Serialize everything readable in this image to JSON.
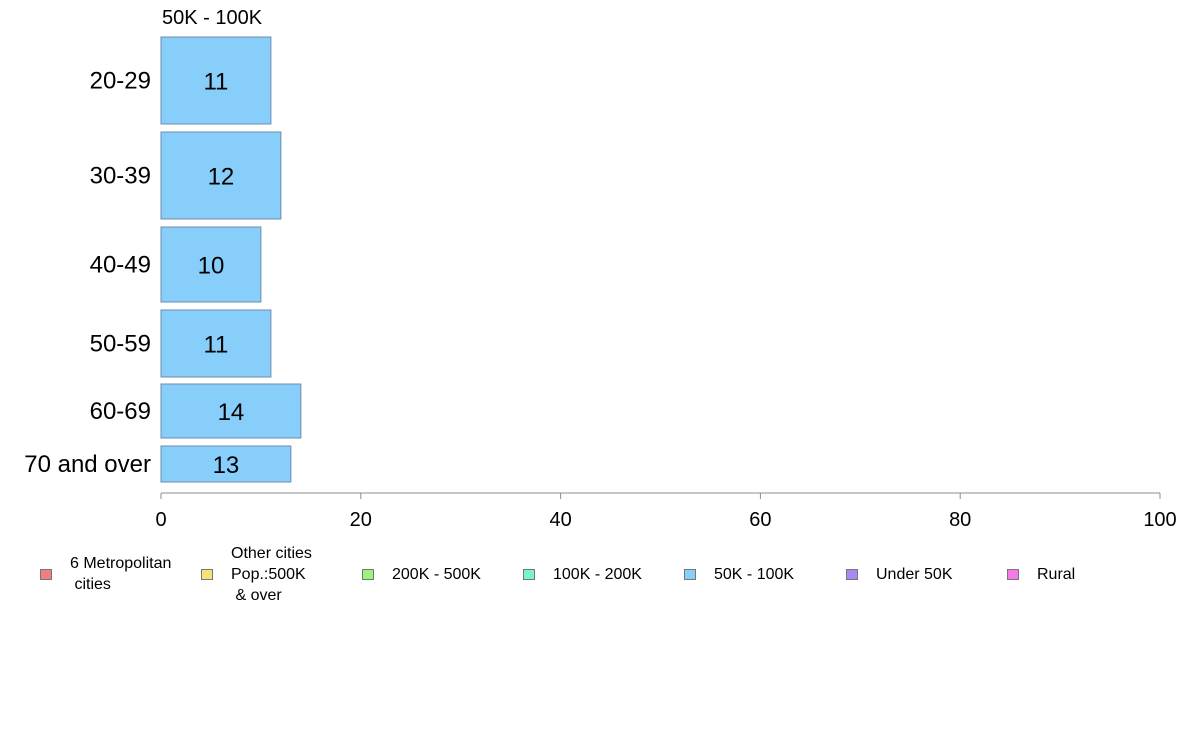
{
  "chart_data": {
    "type": "bar",
    "orientation": "horizontal",
    "title": "50K - 100K",
    "categories": [
      "20-29",
      "30-39",
      "40-49",
      "50-59",
      "60-69",
      "70 and over"
    ],
    "series": [
      {
        "name": "50K - 100K",
        "values": [
          11,
          12,
          10,
          11,
          14,
          13
        ]
      }
    ],
    "xlim": [
      0,
      100
    ],
    "xticks": [
      "0",
      "20",
      "40",
      "60",
      "80",
      "100"
    ],
    "xlabel": "",
    "ylabel": "",
    "bar_color": "#87CEFA",
    "bar_edge_color": "#6E8CA8",
    "grid": false,
    "legend_position": "bottom",
    "legend": [
      {
        "label": "6 Metropolitan\n cities",
        "color": "#F08080"
      },
      {
        "label": "Other cities\nPop.:500K\n & over",
        "color": "#F5E27A"
      },
      {
        "label": "200K - 500K",
        "color": "#98F57A"
      },
      {
        "label": "100K - 200K",
        "color": "#7CF5C4"
      },
      {
        "label": "50K - 100K",
        "color": "#87CEFA"
      },
      {
        "label": "Under 50K",
        "color": "#A98AF5"
      },
      {
        "label": "Rural",
        "color": "#F57AE6"
      }
    ]
  }
}
